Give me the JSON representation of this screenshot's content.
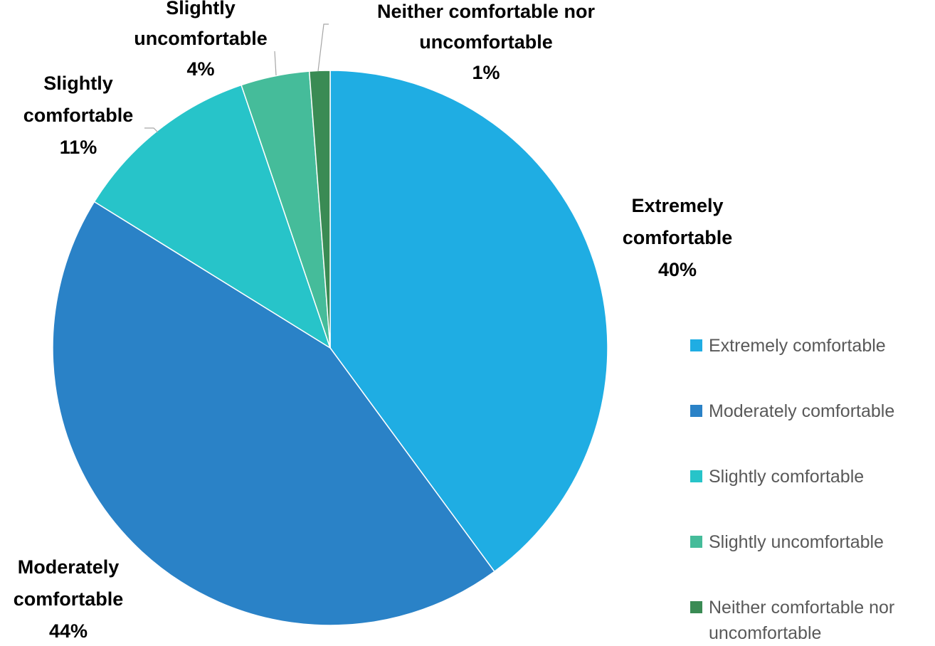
{
  "chart_data": {
    "type": "pie",
    "title": "",
    "slices": [
      {
        "label": "Extremely comfortable",
        "label_lines": [
          "Extremely",
          "comfortable"
        ],
        "value": 40,
        "value_label": "40%",
        "color": "#1FADE3"
      },
      {
        "label": "Moderately comfortable",
        "label_lines": [
          "Moderately",
          "comfortable"
        ],
        "value": 44,
        "value_label": "44%",
        "color": "#2A82C7"
      },
      {
        "label": "Slightly comfortable",
        "label_lines": [
          "Slightly",
          "comfortable"
        ],
        "value": 11,
        "value_label": "11%",
        "color": "#27C4C9"
      },
      {
        "label": "Slightly uncomfortable",
        "label_lines": [
          "Slightly",
          "uncomfortable"
        ],
        "value": 4,
        "value_label": "4%",
        "color": "#45BC9A"
      },
      {
        "label": "Neither comfortable nor uncomfortable",
        "label_lines": [
          "Neither comfortable nor",
          "uncomfortable"
        ],
        "value": 1.2,
        "value_label": "1%",
        "color": "#3A8B54"
      }
    ],
    "legend": {
      "position": "right",
      "entries": [
        "Extremely comfortable",
        "Moderately comfortable",
        "Slightly comfortable",
        "Slightly uncomfortable",
        "Neither comfortable nor uncomfortable"
      ]
    },
    "start_angle": "12 o'clock",
    "direction": "clockwise"
  }
}
